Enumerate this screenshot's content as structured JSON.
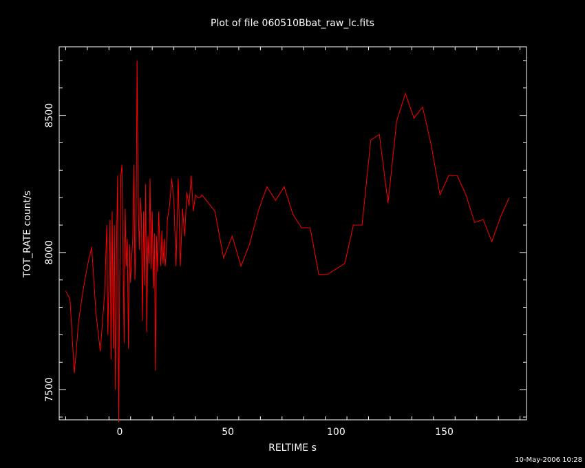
{
  "chart_data": {
    "type": "line",
    "title": "Plot of file 060510Bbat_raw_lc.fits",
    "xlabel": "RELTIME   s",
    "ylabel": "TOT_RATE   count/s",
    "xlim": [
      -28,
      188
    ],
    "ylim": [
      7390,
      8750
    ],
    "xticks": [
      0,
      50,
      100,
      150
    ],
    "xtick_labels": [
      "0",
      "50",
      "100",
      "150"
    ],
    "yticks": [
      7500,
      8000,
      8500
    ],
    "ytick_labels": [
      "7500",
      "8000",
      "8500"
    ],
    "grid": false,
    "line_color": "#ff0000",
    "series": [
      {
        "name": "",
        "x": [
          -25.0,
          -23.0,
          -21.0,
          -19.0,
          -17.0,
          -15.0,
          -13.0,
          -11.0,
          -9.0,
          -7.0,
          -6.0,
          -5.5,
          -5.0,
          -4.5,
          -4.0,
          -3.5,
          -3.0,
          -2.5,
          -2.0,
          -1.5,
          -1.0,
          -0.5,
          0.0,
          0.5,
          1.0,
          1.5,
          2.0,
          2.5,
          3.0,
          3.5,
          4.0,
          4.5,
          5.0,
          5.5,
          6.0,
          6.5,
          7.0,
          7.5,
          8.0,
          8.5,
          9.0,
          9.5,
          10.0,
          10.5,
          11.0,
          11.5,
          12.0,
          12.5,
          13.0,
          13.5,
          14.0,
          14.5,
          15.0,
          15.5,
          16.0,
          16.5,
          17.0,
          17.5,
          18.0,
          18.5,
          19.0,
          19.5,
          20.0,
          20.5,
          21.0,
          21.5,
          22.0,
          23.0,
          24.0,
          25.0,
          26.0,
          27.0,
          28.0,
          29.0,
          30.0,
          31.0,
          32.0,
          33.0,
          34.0,
          35.0,
          36.0,
          37.0,
          38.0,
          39.0,
          40.0,
          44.0,
          48.0,
          52.0,
          56.0,
          60.0,
          64.0,
          68.0,
          72.0,
          76.0,
          80.0,
          84.0,
          88.0,
          92.0,
          96.0,
          100.0,
          104.0,
          108.0,
          112.0,
          116.0,
          120.0,
          124.0,
          128.0,
          132.0,
          136.0,
          140.0,
          144.0,
          148.0,
          152.0,
          156.0,
          160.0,
          164.0,
          168.0,
          172.0,
          176.0,
          180.0
        ],
        "y": [
          7860,
          7830,
          7560,
          7750,
          7860,
          7950,
          8020,
          7780,
          7640,
          7850,
          8100,
          7700,
          7900,
          8120,
          7610,
          8150,
          7650,
          8100,
          7500,
          8020,
          8280,
          7380,
          7910,
          8280,
          8320,
          8010,
          7670,
          8160,
          7950,
          8050,
          7650,
          8030,
          7890,
          7980,
          8050,
          8320,
          7900,
          8050,
          8700,
          8200,
          8010,
          8200,
          8130,
          7750,
          8150,
          7880,
          8250,
          7710,
          8060,
          7960,
          8270,
          7940,
          8150,
          7870,
          8070,
          7570,
          8060,
          7930,
          8150,
          8030,
          7950,
          8080,
          7960,
          8050,
          7950,
          8000,
          8120,
          8170,
          8270,
          8190,
          7950,
          8270,
          7950,
          8160,
          8060,
          8220,
          8170,
          8280,
          8150,
          8210,
          8200,
          8200,
          8210,
          8200,
          8190,
          8150,
          7980,
          8060,
          7950,
          8030,
          8150,
          8240,
          8190,
          8240,
          8140,
          8090,
          8090,
          7920,
          7920,
          7940,
          7960,
          8100,
          8100,
          8410,
          8430,
          8180,
          8480,
          8580,
          8490,
          8530,
          8390,
          8210,
          8280,
          8280,
          8210,
          8110,
          8120,
          8040,
          8130,
          8200
        ]
      }
    ]
  },
  "footer": {
    "timestamp": "10-May-2006 10:28"
  }
}
